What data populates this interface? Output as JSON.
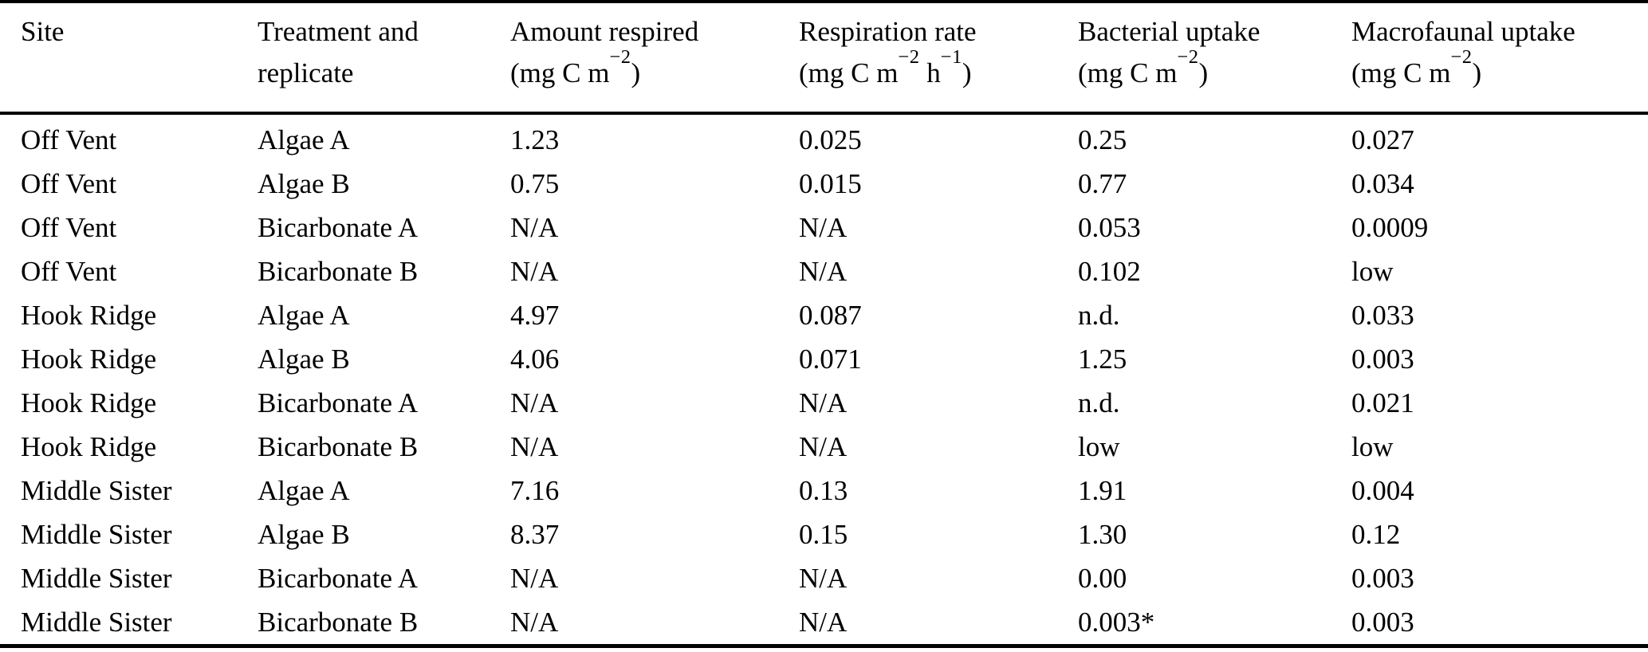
{
  "colors": {
    "background": "#ffffff",
    "text": "#000000",
    "rule": "#000000"
  },
  "table": {
    "columns": [
      {
        "label": "Site"
      },
      {
        "label": "Treatment and",
        "label2": "replicate"
      },
      {
        "label": "Amount respired",
        "unit": {
          "pre": "(mg C m",
          "sup": "−2",
          "post": ")"
        }
      },
      {
        "label": "Respiration rate",
        "unit": {
          "pre": "(mg C m",
          "sup": "−2",
          "mid": " h",
          "sup2": "−1",
          "post": ")"
        }
      },
      {
        "label": "Bacterial uptake",
        "unit": {
          "pre": "(mg C m",
          "sup": "−2",
          "post": ")"
        }
      },
      {
        "label": "Macrofaunal uptake",
        "unit": {
          "pre": "(mg C m",
          "sup": "−2",
          "post": ")"
        }
      }
    ],
    "rows": [
      {
        "site": "Off Vent",
        "treatment": "Algae A",
        "amount_respired": "1.23",
        "respiration_rate": "0.025",
        "bacterial_uptake": "0.25",
        "macrofaunal_uptake": "0.027"
      },
      {
        "site": "Off Vent",
        "treatment": "Algae B",
        "amount_respired": "0.75",
        "respiration_rate": "0.015",
        "bacterial_uptake": "0.77",
        "macrofaunal_uptake": "0.034"
      },
      {
        "site": "Off Vent",
        "treatment": "Bicarbonate A",
        "amount_respired": "N/A",
        "respiration_rate": "N/A",
        "bacterial_uptake": "0.053",
        "macrofaunal_uptake": "0.0009"
      },
      {
        "site": "Off Vent",
        "treatment": "Bicarbonate B",
        "amount_respired": "N/A",
        "respiration_rate": "N/A",
        "bacterial_uptake": "0.102",
        "macrofaunal_uptake": "low"
      },
      {
        "site": "Hook Ridge",
        "treatment": "Algae A",
        "amount_respired": "4.97",
        "respiration_rate": "0.087",
        "bacterial_uptake": "n.d.",
        "macrofaunal_uptake": "0.033"
      },
      {
        "site": "Hook Ridge",
        "treatment": "Algae B",
        "amount_respired": "4.06",
        "respiration_rate": "0.071",
        "bacterial_uptake": "1.25",
        "macrofaunal_uptake": "0.003"
      },
      {
        "site": "Hook Ridge",
        "treatment": "Bicarbonate A",
        "amount_respired": "N/A",
        "respiration_rate": "N/A",
        "bacterial_uptake": "n.d.",
        "macrofaunal_uptake": "0.021"
      },
      {
        "site": "Hook Ridge",
        "treatment": "Bicarbonate B",
        "amount_respired": "N/A",
        "respiration_rate": "N/A",
        "bacterial_uptake": "low",
        "macrofaunal_uptake": "low"
      },
      {
        "site": "Middle Sister",
        "treatment": "Algae A",
        "amount_respired": "7.16",
        "respiration_rate": "0.13",
        "bacterial_uptake": "1.91",
        "macrofaunal_uptake": "0.004"
      },
      {
        "site": "Middle Sister",
        "treatment": "Algae B",
        "amount_respired": "8.37",
        "respiration_rate": "0.15",
        "bacterial_uptake": "1.30",
        "macrofaunal_uptake": "0.12"
      },
      {
        "site": "Middle Sister",
        "treatment": "Bicarbonate A",
        "amount_respired": "N/A",
        "respiration_rate": "N/A",
        "bacterial_uptake": "0.00",
        "macrofaunal_uptake": "0.003"
      },
      {
        "site": "Middle Sister",
        "treatment": "Bicarbonate B",
        "amount_respired": "N/A",
        "respiration_rate": "N/A",
        "bacterial_uptake": "0.003*",
        "macrofaunal_uptake": "0.003"
      }
    ]
  }
}
